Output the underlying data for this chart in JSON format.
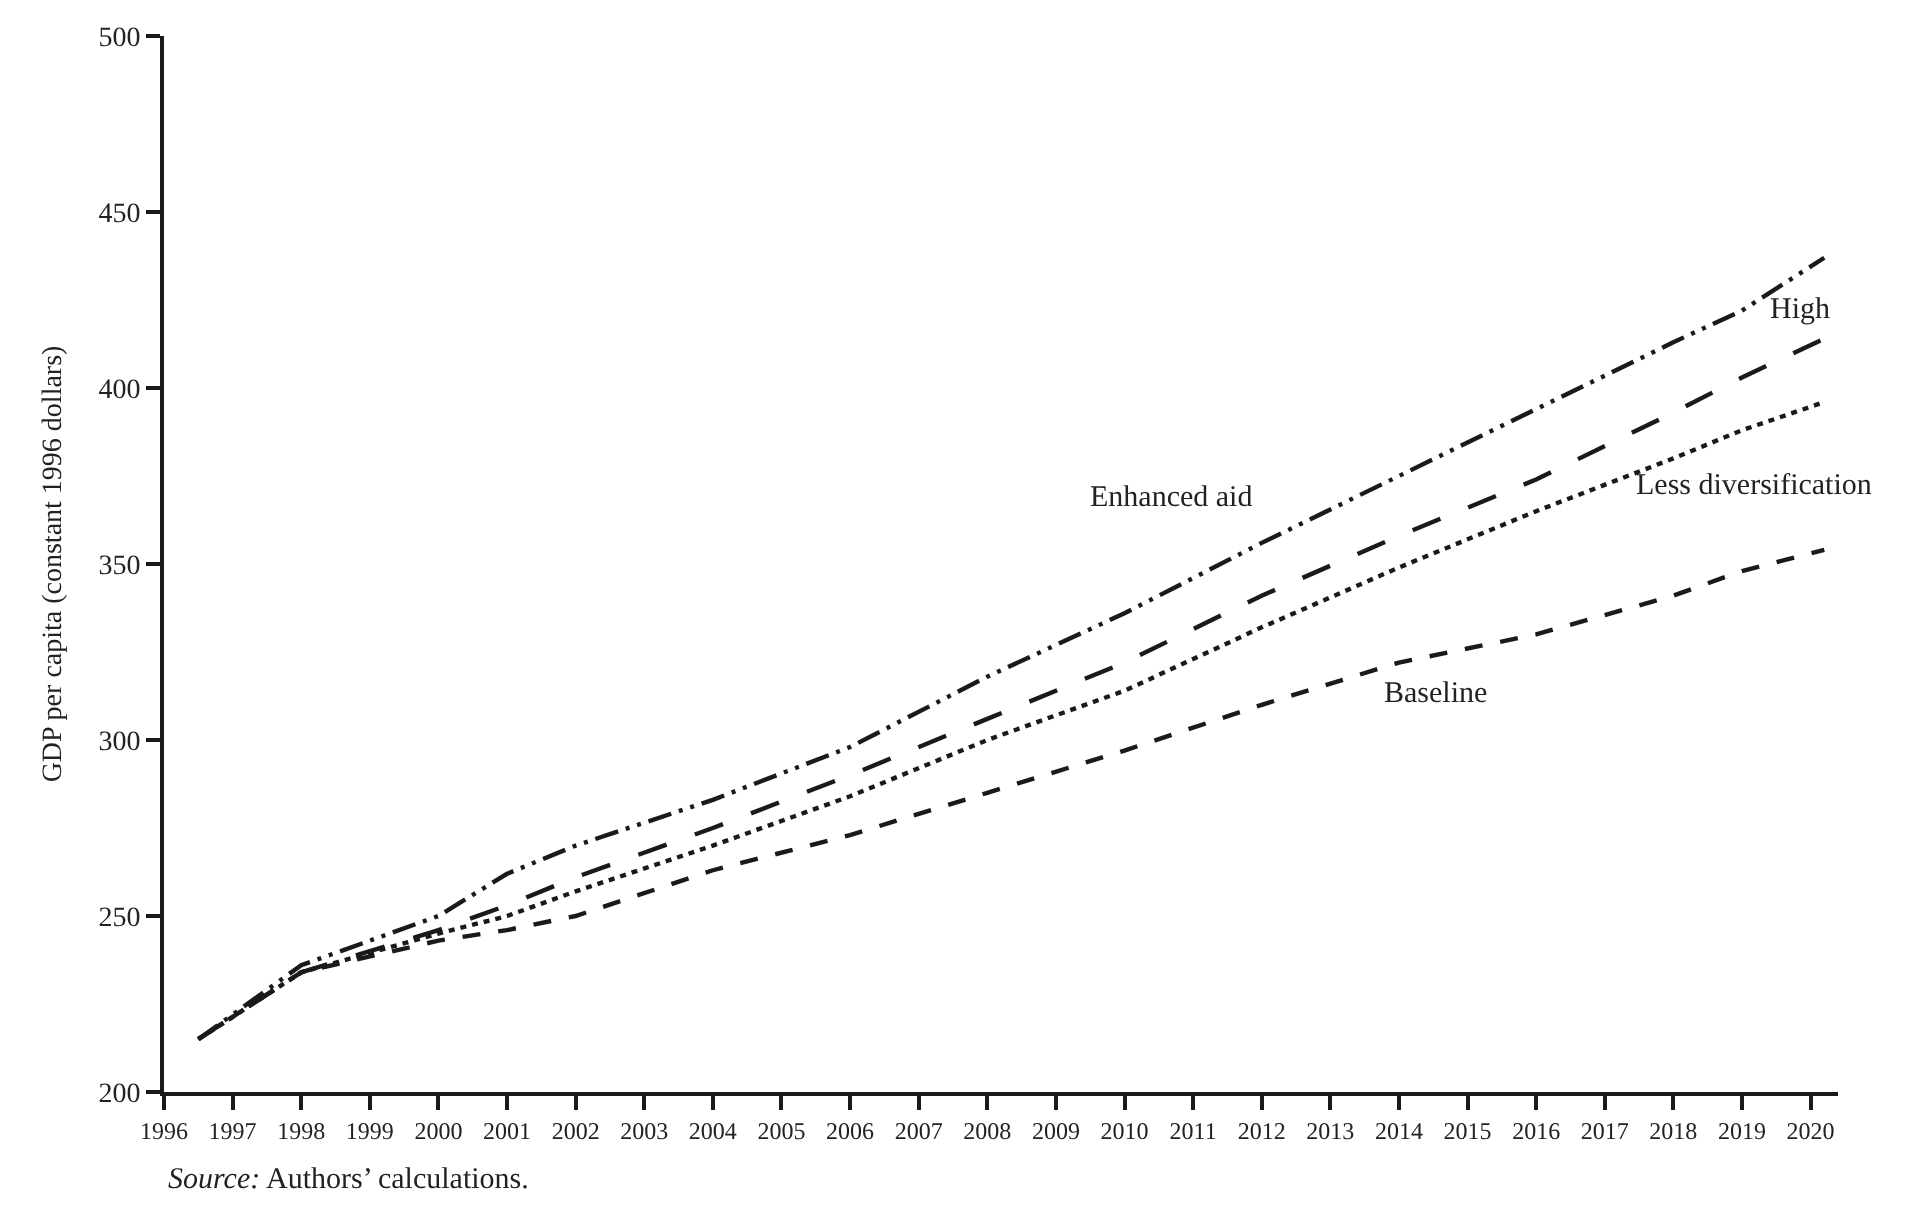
{
  "chart_data": {
    "type": "line",
    "ylabel": "GDP per capita (constant 1996 dollars)",
    "x": [
      1996.5,
      1998,
      2000,
      2001,
      2002,
      2004,
      2006,
      2008,
      2010,
      2012,
      2014,
      2016,
      2018,
      2019,
      2020.2
    ],
    "series": [
      {
        "name": "Enhanced aid",
        "color": "#1a1a1a",
        "line_style": "dashdotdot",
        "values": [
          215,
          236,
          250,
          262,
          270,
          283,
          298,
          318,
          336,
          356,
          375,
          394,
          413,
          422,
          437
        ]
      },
      {
        "name": "High",
        "color": "#1a1a1a",
        "line_style": "longdash",
        "values": [
          215,
          234,
          246,
          253,
          261,
          275,
          290,
          306,
          322,
          341,
          358,
          374,
          393,
          403,
          414
        ]
      },
      {
        "name": "Less diversification",
        "color": "#1a1a1a",
        "line_style": "dotted",
        "values": [
          215,
          234,
          245,
          250,
          257,
          270,
          284,
          300,
          314,
          332,
          349,
          365,
          380,
          388,
          396
        ]
      },
      {
        "name": "Baseline",
        "color": "#1a1a1a",
        "line_style": "dashed",
        "values": [
          215,
          234,
          243,
          246,
          250,
          263,
          273,
          285,
          297,
          310,
          322,
          330,
          341,
          348,
          354
        ]
      }
    ],
    "xlim": [
      1996,
      2020.4
    ],
    "xticks": [
      1996,
      1997,
      1998,
      1999,
      2000,
      2001,
      2002,
      2003,
      2004,
      2005,
      2006,
      2007,
      2008,
      2009,
      2010,
      2011,
      2012,
      2013,
      2014,
      2015,
      2016,
      2017,
      2018,
      2019,
      2020
    ],
    "ylim": [
      200,
      500
    ],
    "yticks": [
      200,
      250,
      300,
      350,
      400,
      450,
      500
    ],
    "legend": false,
    "marker": "none",
    "annotations": [
      "Source: Authors’ calculations."
    ]
  }
}
